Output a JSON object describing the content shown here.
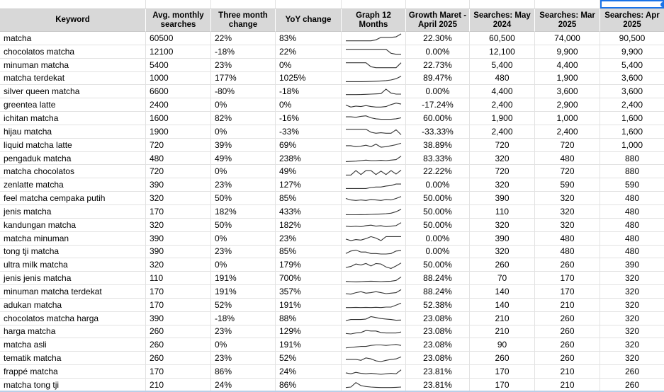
{
  "colors": {
    "header_bg": "#d8d8d8",
    "gridline": "#e2e2e2",
    "selection_blue": "#1a73e8",
    "sparkline": "#333333",
    "sheet_bottom_edge": "#b9cfe8"
  },
  "columns": [
    {
      "id": "keyword",
      "key": "keyword",
      "label": "Keyword",
      "align": "left"
    },
    {
      "id": "avg",
      "key": "avg",
      "label": "Avg. monthly searches",
      "align": "left"
    },
    {
      "id": "three",
      "key": "three",
      "label": "Three month change",
      "align": "left"
    },
    {
      "id": "yoy",
      "key": "yoy",
      "label": "YoY change",
      "align": "left"
    },
    {
      "id": "graph",
      "key": "spark",
      "label": "Graph 12 Months",
      "align": "center"
    },
    {
      "id": "growth",
      "key": "growth",
      "label": "Growth Maret - April 2025",
      "align": "center"
    },
    {
      "id": "may2024",
      "key": "may2024",
      "label": "Searches: May 2024",
      "align": "center"
    },
    {
      "id": "mar2025",
      "key": "mar2025",
      "label": "Searches: Mar 2025",
      "align": "center"
    },
    {
      "id": "apr2025",
      "key": "apr2025",
      "label": "Searches: Apr 2025",
      "align": "center"
    }
  ],
  "rows": [
    {
      "keyword": "matcha",
      "avg": "60500",
      "three": "22%",
      "yoy": "83%",
      "growth": "22.30%",
      "may2024": "60,500",
      "mar2025": "74,000",
      "apr2025": "90,500",
      "spark": [
        2,
        2,
        2,
        2,
        2,
        2,
        3,
        5.5,
        5.5,
        5.5,
        6,
        9
      ]
    },
    {
      "keyword": "chocolatos matcha",
      "avg": "12100",
      "three": "-18%",
      "yoy": "22%",
      "growth": "0.00%",
      "may2024": "12,100",
      "mar2025": "9,900",
      "apr2025": "9,900",
      "spark": [
        7,
        7,
        7,
        7,
        7,
        7,
        7,
        7,
        7,
        3,
        2,
        2
      ]
    },
    {
      "keyword": "minuman matcha",
      "avg": "5400",
      "three": "23%",
      "yoy": "0%",
      "growth": "22.73%",
      "may2024": "5,400",
      "mar2025": "4,400",
      "apr2025": "5,400",
      "spark": [
        7,
        7,
        7,
        7,
        7,
        3,
        2,
        2,
        2,
        2,
        2,
        7
      ]
    },
    {
      "keyword": "matcha terdekat",
      "avg": "1000",
      "three": "177%",
      "yoy": "1025%",
      "growth": "89.47%",
      "may2024": "480",
      "mar2025": "1,900",
      "apr2025": "3,600",
      "spark": [
        1.5,
        1.5,
        1.5,
        1.5,
        1.6,
        1.7,
        1.9,
        2.2,
        2.6,
        3.2,
        4.5,
        7
      ]
    },
    {
      "keyword": "silver queen matcha",
      "avg": "6600",
      "three": "-80%",
      "yoy": "-18%",
      "growth": "0.00%",
      "may2024": "4,400",
      "mar2025": "3,600",
      "apr2025": "3,600",
      "spark": [
        2,
        2,
        2,
        2.1,
        2.3,
        2.5,
        2.7,
        3,
        7.5,
        3.5,
        2.5,
        2.5
      ]
    },
    {
      "keyword": "greentea latte",
      "avg": "2400",
      "three": "0%",
      "yoy": "0%",
      "growth": "-17.24%",
      "may2024": "2,400",
      "mar2025": "2,900",
      "apr2025": "2,400",
      "spark": [
        5,
        3,
        4,
        3.5,
        4.5,
        3.5,
        3,
        3,
        3.5,
        5.5,
        7,
        6
      ]
    },
    {
      "keyword": "ichitan matcha",
      "avg": "1600",
      "three": "82%",
      "yoy": "-16%",
      "growth": "60.00%",
      "may2024": "1,900",
      "mar2025": "1,000",
      "apr2025": "1,600",
      "spark": [
        6,
        6,
        5.5,
        6.5,
        7,
        5,
        4,
        3.5,
        3.5,
        3.5,
        4,
        5
      ]
    },
    {
      "keyword": "hijau matcha",
      "avg": "1900",
      "three": "0%",
      "yoy": "-33%",
      "growth": "-33.33%",
      "may2024": "2,400",
      "mar2025": "2,400",
      "apr2025": "1,600",
      "spark": [
        7,
        7,
        7,
        7,
        7,
        4,
        3,
        3.5,
        3,
        3,
        6.5,
        1.5
      ]
    },
    {
      "keyword": "liquid matcha latte",
      "avg": "720",
      "three": "39%",
      "yoy": "69%",
      "growth": "38.89%",
      "may2024": "720",
      "mar2025": "720",
      "apr2025": "1,000",
      "spark": [
        4,
        4,
        3,
        3.5,
        4.5,
        3,
        5.5,
        2.5,
        3,
        4,
        5,
        6.5
      ]
    },
    {
      "keyword": "pengaduk matcha",
      "avg": "480",
      "three": "49%",
      "yoy": "238%",
      "growth": "83.33%",
      "may2024": "320",
      "mar2025": "480",
      "apr2025": "880",
      "spark": [
        1.5,
        1.7,
        2,
        2.5,
        3,
        2.5,
        2.5,
        2.8,
        2.5,
        3,
        3.5,
        7
      ]
    },
    {
      "keyword": "matcha chocolatos",
      "avg": "720",
      "three": "0%",
      "yoy": "49%",
      "growth": "22.22%",
      "may2024": "720",
      "mar2025": "720",
      "apr2025": "880",
      "spark": [
        1.5,
        1.5,
        6,
        2,
        6,
        6,
        2,
        5.5,
        2,
        6,
        2.5,
        6.5
      ]
    },
    {
      "keyword": "zenlatte matcha",
      "avg": "390",
      "three": "23%",
      "yoy": "127%",
      "growth": "0.00%",
      "may2024": "320",
      "mar2025": "590",
      "apr2025": "590",
      "spark": [
        1.5,
        1.5,
        1.5,
        1.5,
        1.5,
        2.5,
        3,
        3,
        4,
        4.5,
        6,
        6
      ]
    },
    {
      "keyword": "feel matcha cempaka putih",
      "avg": "320",
      "three": "50%",
      "yoy": "85%",
      "growth": "50.00%",
      "may2024": "390",
      "mar2025": "320",
      "apr2025": "480",
      "spark": [
        5,
        3.5,
        3,
        3.5,
        3,
        4,
        3.5,
        3,
        4,
        3.5,
        5,
        7
      ]
    },
    {
      "keyword": "jenis matcha",
      "avg": "170",
      "three": "182%",
      "yoy": "433%",
      "growth": "50.00%",
      "may2024": "110",
      "mar2025": "320",
      "apr2025": "480",
      "spark": [
        1.5,
        1.4,
        1.4,
        1.5,
        1.6,
        1.8,
        2,
        2.2,
        2.5,
        3,
        4.5,
        7
      ]
    },
    {
      "keyword": "kandungan matcha",
      "avg": "320",
      "three": "50%",
      "yoy": "182%",
      "growth": "50.00%",
      "may2024": "320",
      "mar2025": "320",
      "apr2025": "480",
      "spark": [
        3.5,
        3,
        3.5,
        3,
        4,
        4.5,
        3.5,
        4,
        3,
        3.5,
        4,
        7
      ]
    },
    {
      "keyword": "matcha minuman",
      "avg": "390",
      "three": "0%",
      "yoy": "23%",
      "growth": "0.00%",
      "may2024": "390",
      "mar2025": "480",
      "apr2025": "480",
      "spark": [
        4,
        2.5,
        3.5,
        3,
        4.5,
        6.5,
        5,
        2.5,
        6.5,
        6.5,
        6.5,
        6.5
      ]
    },
    {
      "keyword": "tong tji matcha",
      "avg": "390",
      "three": "23%",
      "yoy": "85%",
      "growth": "0.00%",
      "may2024": "320",
      "mar2025": "480",
      "apr2025": "480",
      "spark": [
        3,
        5.5,
        6.5,
        4.5,
        4.5,
        3,
        3,
        2.5,
        2.5,
        3,
        5.5,
        6
      ]
    },
    {
      "keyword": "ultra milk matcha",
      "avg": "320",
      "three": "0%",
      "yoy": "179%",
      "growth": "50.00%",
      "may2024": "260",
      "mar2025": "260",
      "apr2025": "390",
      "spark": [
        2.5,
        3.5,
        6,
        5,
        6.5,
        4,
        6.5,
        6,
        3,
        1.5,
        4,
        7
      ]
    },
    {
      "keyword": "jenis jenis matcha",
      "avg": "110",
      "three": "191%",
      "yoy": "700%",
      "growth": "88.24%",
      "may2024": "70",
      "mar2025": "170",
      "apr2025": "320",
      "spark": [
        2,
        1.8,
        1.6,
        1.8,
        2,
        2.2,
        2,
        1.8,
        2,
        2.2,
        3,
        6.5
      ]
    },
    {
      "keyword": "minuman matcha terdekat",
      "avg": "170",
      "three": "191%",
      "yoy": "357%",
      "growth": "88.24%",
      "may2024": "140",
      "mar2025": "170",
      "apr2025": "320",
      "spark": [
        2.5,
        2,
        3.5,
        4.5,
        3,
        3.5,
        4.5,
        3.5,
        2.5,
        3,
        3.5,
        6.5
      ]
    },
    {
      "keyword": "adukan matcha",
      "avg": "170",
      "three": "52%",
      "yoy": "191%",
      "growth": "52.38%",
      "may2024": "140",
      "mar2025": "210",
      "apr2025": "320",
      "spark": [
        2,
        2,
        2.2,
        2,
        2.2,
        2,
        2.3,
        2,
        2.5,
        2.5,
        4.5,
        6.5
      ]
    },
    {
      "keyword": "chocolatos matcha harga",
      "avg": "390",
      "three": "-18%",
      "yoy": "88%",
      "growth": "23.08%",
      "may2024": "210",
      "mar2025": "260",
      "apr2025": "320",
      "spark": [
        2.5,
        3.5,
        3.5,
        3.5,
        4,
        6.5,
        5.5,
        4.5,
        4,
        3.5,
        2.8,
        3
      ]
    },
    {
      "keyword": "harga matcha",
      "avg": "260",
      "three": "23%",
      "yoy": "129%",
      "growth": "23.08%",
      "may2024": "210",
      "mar2025": "260",
      "apr2025": "320",
      "spark": [
        3,
        2.5,
        3.5,
        4,
        6,
        5.5,
        5.5,
        4,
        3.5,
        3.5,
        3.5,
        4.5
      ]
    },
    {
      "keyword": "matcha asli",
      "avg": "260",
      "three": "0%",
      "yoy": "191%",
      "growth": "23.08%",
      "may2024": "90",
      "mar2025": "260",
      "apr2025": "320",
      "spark": [
        2,
        2.5,
        3,
        3.5,
        3.5,
        4.5,
        5,
        5,
        4.5,
        5,
        5.5,
        4.5
      ]
    },
    {
      "keyword": "tematik matcha",
      "avg": "260",
      "three": "23%",
      "yoy": "52%",
      "growth": "23.08%",
      "may2024": "260",
      "mar2025": "260",
      "apr2025": "320",
      "spark": [
        4,
        4,
        4,
        3,
        5.5,
        4.5,
        2.5,
        1.8,
        3,
        4,
        4.5,
        6.5
      ]
    },
    {
      "keyword": "frappé matcha",
      "avg": "170",
      "three": "86%",
      "yoy": "24%",
      "growth": "23.81%",
      "may2024": "170",
      "mar2025": "210",
      "apr2025": "260",
      "spark": [
        4,
        3,
        4.5,
        3.5,
        3,
        3.5,
        3,
        2.5,
        3,
        3.5,
        3,
        7
      ]
    },
    {
      "keyword": "matcha tong tji",
      "avg": "210",
      "three": "24%",
      "yoy": "86%",
      "growth": "23.81%",
      "may2024": "170",
      "mar2025": "210",
      "apr2025": "260",
      "spark": [
        2,
        2.5,
        7,
        4,
        3,
        2.5,
        2.2,
        2,
        2,
        2,
        2.2,
        2.5
      ]
    }
  ]
}
